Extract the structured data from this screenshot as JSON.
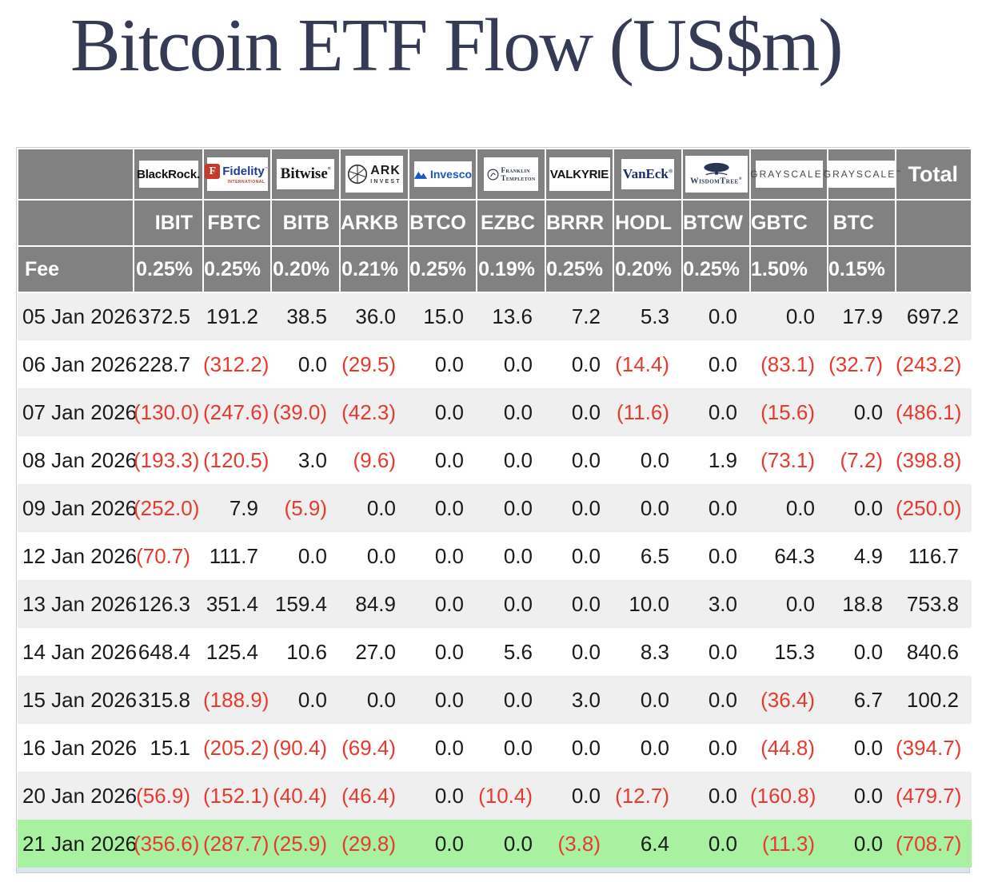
{
  "title": "Bitcoin ETF Flow (US$m)",
  "table": {
    "fee_label": "Fee",
    "total_label": "Total",
    "columns": [
      {
        "ticker": "IBIT",
        "fee": "0.25%",
        "provider": "BlackRock",
        "logo": {
          "type": "blackrock",
          "text": "BlackRock."
        }
      },
      {
        "ticker": "FBTC",
        "fee": "0.25%",
        "provider": "Fidelity",
        "logo": {
          "type": "fidelity",
          "mark": "F",
          "text": "Fidelity",
          "tm": "™",
          "sub": "INTERNATIONAL"
        }
      },
      {
        "ticker": "BITB",
        "fee": "0.20%",
        "provider": "Bitwise",
        "logo": {
          "type": "bitwise",
          "text": "Bitwise",
          "sup": "°"
        }
      },
      {
        "ticker": "ARKB",
        "fee": "0.21%",
        "provider": "ARK Invest",
        "logo": {
          "type": "ark",
          "text": "ARK",
          "sub": "INVEST"
        }
      },
      {
        "ticker": "BTCO",
        "fee": "0.25%",
        "provider": "Invesco",
        "logo": {
          "type": "invesco",
          "text": "Invesco"
        }
      },
      {
        "ticker": "EZBC",
        "fee": "0.19%",
        "provider": "Franklin Templeton",
        "logo": {
          "type": "franklin",
          "line1": "Franklin",
          "line2": "Templeton"
        }
      },
      {
        "ticker": "BRRR",
        "fee": "0.25%",
        "provider": "Valkyrie",
        "logo": {
          "type": "valkyrie",
          "text": "VALKYRIE"
        }
      },
      {
        "ticker": "HODL",
        "fee": "0.20%",
        "provider": "VanEck",
        "logo": {
          "type": "vaneck",
          "text": "VanEck",
          "sup": "®"
        }
      },
      {
        "ticker": "BTCW",
        "fee": "0.25%",
        "provider": "WisdomTree",
        "logo": {
          "type": "wisdomtree",
          "text": "WisdomTree",
          "sup": "®"
        }
      },
      {
        "ticker": "GBTC",
        "fee": "1.50%",
        "provider": "Grayscale",
        "logo": {
          "type": "grayscale",
          "text": "GRAYSCALE",
          "tm": "™"
        }
      },
      {
        "ticker": "BTC",
        "fee": "0.15%",
        "provider": "Grayscale",
        "logo": {
          "type": "grayscale",
          "text": "GRAYSCALE",
          "tm": "™"
        }
      }
    ]
  },
  "chart_data": {
    "type": "table",
    "title": "Bitcoin ETF Flow (US$m)",
    "unit": "US$m",
    "columns": [
      "IBIT",
      "FBTC",
      "BITB",
      "ARKB",
      "BTCO",
      "EZBC",
      "BRRR",
      "HODL",
      "BTCW",
      "GBTC",
      "BTC",
      "Total"
    ],
    "fees_percent": [
      "0.25%",
      "0.25%",
      "0.20%",
      "0.21%",
      "0.25%",
      "0.19%",
      "0.25%",
      "0.20%",
      "0.25%",
      "1.50%",
      "0.15%"
    ],
    "negative_style": "red-parentheses",
    "highlighted_row": "21 Jan 2026",
    "rows": [
      {
        "date": "05 Jan 2026",
        "values": [
          372.5,
          191.2,
          38.5,
          36.0,
          15.0,
          13.6,
          7.2,
          5.3,
          0.0,
          0.0,
          17.9
        ],
        "total": 697.2
      },
      {
        "date": "06 Jan 2026",
        "values": [
          228.7,
          -312.2,
          0.0,
          -29.5,
          0.0,
          0.0,
          0.0,
          -14.4,
          0.0,
          -83.1,
          -32.7
        ],
        "total": -243.2
      },
      {
        "date": "07 Jan 2026",
        "values": [
          -130.0,
          -247.6,
          -39.0,
          -42.3,
          0.0,
          0.0,
          0.0,
          -11.6,
          0.0,
          -15.6,
          0.0
        ],
        "total": -486.1
      },
      {
        "date": "08 Jan 2026",
        "values": [
          -193.3,
          -120.5,
          3.0,
          -9.6,
          0.0,
          0.0,
          0.0,
          0.0,
          1.9,
          -73.1,
          -7.2
        ],
        "total": -398.8
      },
      {
        "date": "09 Jan 2026",
        "values": [
          -252.0,
          7.9,
          -5.9,
          0.0,
          0.0,
          0.0,
          0.0,
          0.0,
          0.0,
          0.0,
          0.0
        ],
        "total": -250.0
      },
      {
        "date": "12 Jan 2026",
        "values": [
          -70.7,
          111.7,
          0.0,
          0.0,
          0.0,
          0.0,
          0.0,
          6.5,
          0.0,
          64.3,
          4.9
        ],
        "total": 116.7
      },
      {
        "date": "13 Jan 2026",
        "values": [
          126.3,
          351.4,
          159.4,
          84.9,
          0.0,
          0.0,
          0.0,
          10.0,
          3.0,
          0.0,
          18.8
        ],
        "total": 753.8
      },
      {
        "date": "14 Jan 2026",
        "values": [
          648.4,
          125.4,
          10.6,
          27.0,
          0.0,
          5.6,
          0.0,
          8.3,
          0.0,
          15.3,
          0.0
        ],
        "total": 840.6
      },
      {
        "date": "15 Jan 2026",
        "values": [
          315.8,
          -188.9,
          0.0,
          0.0,
          0.0,
          0.0,
          3.0,
          0.0,
          0.0,
          -36.4,
          6.7
        ],
        "total": 100.2
      },
      {
        "date": "16 Jan 2026",
        "values": [
          15.1,
          -205.2,
          -90.4,
          -69.4,
          0.0,
          0.0,
          0.0,
          0.0,
          0.0,
          -44.8,
          0.0
        ],
        "total": -394.7
      },
      {
        "date": "20 Jan 2026",
        "values": [
          -56.9,
          -152.1,
          -40.4,
          -46.4,
          0.0,
          -10.4,
          0.0,
          -12.7,
          0.0,
          -160.8,
          0.0
        ],
        "total": -479.7
      },
      {
        "date": "21 Jan 2026",
        "values": [
          -356.6,
          -287.7,
          -25.9,
          -29.8,
          0.0,
          0.0,
          -3.8,
          6.4,
          0.0,
          -11.3,
          0.0
        ],
        "total": -708.7,
        "highlight": true
      }
    ]
  },
  "colors": {
    "title-color": "#353b54",
    "header-bg": "#818181",
    "header-text": "#ffffff",
    "row-alt-bg": "#efefef",
    "row-bg": "#ffffff",
    "highlight-bg": "#a8f1a1",
    "negative-red": "#e8392d",
    "value-text": "#1a1a1a",
    "peek-bg": "#dbe6f2",
    "table-border": "#cfcdc5"
  }
}
